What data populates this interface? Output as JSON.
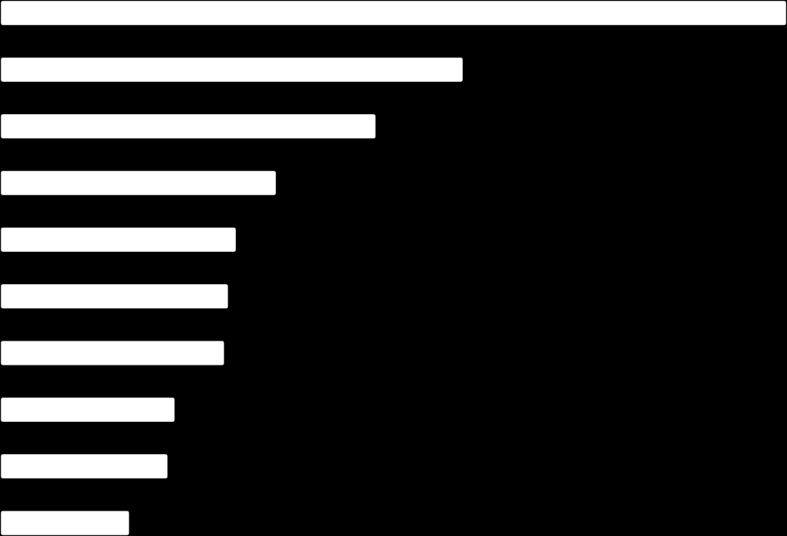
{
  "chart_data": {
    "type": "bar",
    "orientation": "horizontal",
    "categories": [
      null,
      null,
      null,
      null,
      null,
      null,
      null,
      null,
      null,
      null
    ],
    "values": [
      100,
      58.8,
      47.7,
      35,
      29.9,
      28.9,
      28.4,
      22.1,
      21.2,
      16.3
    ],
    "color": "#ffffff",
    "xlim": [
      0,
      100
    ]
  }
}
